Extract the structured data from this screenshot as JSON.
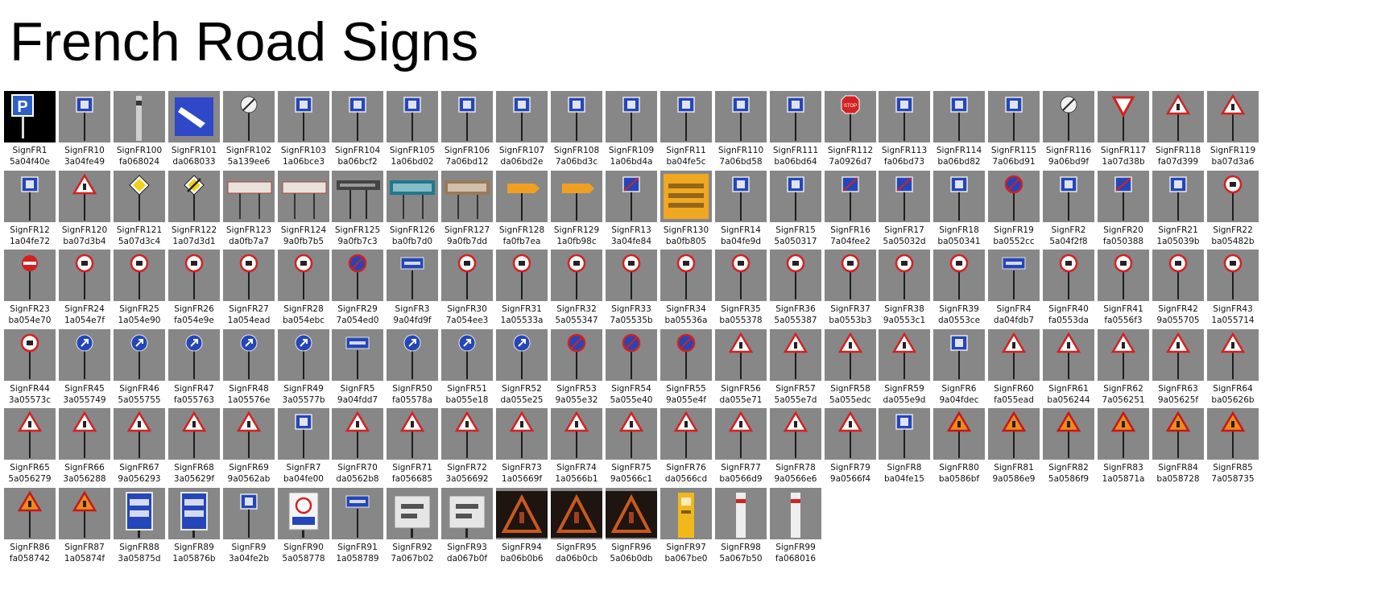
{
  "page": {
    "title": "French Road Signs"
  },
  "signs": [
    {
      "name": "SignFR1",
      "hash": "5a04f40e",
      "icon": "parking-sign-icon"
    },
    {
      "name": "SignFR10",
      "hash": "3a04fe49",
      "icon": "blue-square-sign-icon"
    },
    {
      "name": "SignFR100",
      "hash": "fa068024",
      "icon": "bollard-post-icon"
    },
    {
      "name": "SignFR101",
      "hash": "da068033",
      "icon": "blue-arrow-panel-icon"
    },
    {
      "name": "SignFR102",
      "hash": "5a139ee6",
      "icon": "end-restriction-sign-icon"
    },
    {
      "name": "SignFR103",
      "hash": "1a06bce3",
      "icon": "blue-square-sign-icon"
    },
    {
      "name": "SignFR104",
      "hash": "ba06bcf2",
      "icon": "blue-square-sign-icon"
    },
    {
      "name": "SignFR105",
      "hash": "1a06bd02",
      "icon": "blue-square-sign-icon"
    },
    {
      "name": "SignFR106",
      "hash": "7a06bd12",
      "icon": "blue-square-sign-icon"
    },
    {
      "name": "SignFR107",
      "hash": "da06bd2e",
      "icon": "blue-square-sign-icon"
    },
    {
      "name": "SignFR108",
      "hash": "7a06bd3c",
      "icon": "blue-square-sign-icon"
    },
    {
      "name": "SignFR109",
      "hash": "1a06bd4a",
      "icon": "blue-square-sign-icon"
    },
    {
      "name": "SignFR11",
      "hash": "ba04fe5c",
      "icon": "blue-square-sign-icon"
    },
    {
      "name": "SignFR110",
      "hash": "7a06bd58",
      "icon": "blue-square-sign-icon"
    },
    {
      "name": "SignFR111",
      "hash": "ba06bd64",
      "icon": "blue-square-sign-icon"
    },
    {
      "name": "SignFR112",
      "hash": "7a0926d7",
      "icon": "stop-sign-icon"
    },
    {
      "name": "SignFR113",
      "hash": "fa06bd73",
      "icon": "blue-square-sign-icon"
    },
    {
      "name": "SignFR114",
      "hash": "ba06bd82",
      "icon": "blue-square-sign-icon"
    },
    {
      "name": "SignFR115",
      "hash": "7a06bd91",
      "icon": "blue-square-sign-icon"
    },
    {
      "name": "SignFR116",
      "hash": "9a06bd9f",
      "icon": "end-restriction-sign-icon"
    },
    {
      "name": "SignFR117",
      "hash": "1a07d38b",
      "icon": "yield-sign-icon"
    },
    {
      "name": "SignFR118",
      "hash": "fa07d399",
      "icon": "warning-triangle-icon"
    },
    {
      "name": "SignFR119",
      "hash": "ba07d3a6",
      "icon": "warning-triangle-icon"
    },
    {
      "name": "SignFR12",
      "hash": "1a04fe72",
      "icon": "blue-square-sign-icon"
    },
    {
      "name": "SignFR120",
      "hash": "ba07d3b4",
      "icon": "warning-triangle-icon"
    },
    {
      "name": "SignFR121",
      "hash": "5a07d3c4",
      "icon": "priority-road-sign-icon"
    },
    {
      "name": "SignFR122",
      "hash": "1a07d3d1",
      "icon": "end-priority-road-sign-icon"
    },
    {
      "name": "SignFR123",
      "hash": "da0fb7a7",
      "icon": "white-direction-panel-icon"
    },
    {
      "name": "SignFR124",
      "hash": "9a0fb7b5",
      "icon": "white-direction-panel-icon"
    },
    {
      "name": "SignFR125",
      "hash": "9a0fb7c3",
      "icon": "dark-direction-panel-icon"
    },
    {
      "name": "SignFR126",
      "hash": "ba0fb7d0",
      "icon": "green-direction-panel-icon"
    },
    {
      "name": "SignFR127",
      "hash": "9a0fb7dd",
      "icon": "brown-direction-panel-icon"
    },
    {
      "name": "SignFR128",
      "hash": "fa0fb7ea",
      "icon": "orange-detour-panel-icon"
    },
    {
      "name": "SignFR129",
      "hash": "1a0fb98c",
      "icon": "orange-detour-panel-icon"
    },
    {
      "name": "SignFR13",
      "hash": "3a04fe84",
      "icon": "no-parking-square-sign-icon"
    },
    {
      "name": "SignFR130",
      "hash": "ba0fb805",
      "icon": "orange-roadworks-board-icon"
    },
    {
      "name": "SignFR14",
      "hash": "ba04fe9d",
      "icon": "blue-square-sign-icon"
    },
    {
      "name": "SignFR15",
      "hash": "5a050317",
      "icon": "blue-square-sign-icon"
    },
    {
      "name": "SignFR16",
      "hash": "7a04fee2",
      "icon": "no-parking-square-sign-icon"
    },
    {
      "name": "SignFR17",
      "hash": "5a05032d",
      "icon": "no-parking-square-sign-icon"
    },
    {
      "name": "SignFR18",
      "hash": "ba050341",
      "icon": "blue-square-sign-icon"
    },
    {
      "name": "SignFR19",
      "hash": "ba0552cc",
      "icon": "no-parking-round-sign-icon"
    },
    {
      "name": "SignFR2",
      "hash": "5a04f2f8",
      "icon": "blue-square-sign-icon"
    },
    {
      "name": "SignFR20",
      "hash": "fa050388",
      "icon": "no-parking-square-sign-icon"
    },
    {
      "name": "SignFR21",
      "hash": "1a05039b",
      "icon": "blue-square-sign-icon"
    },
    {
      "name": "SignFR22",
      "hash": "ba05482b",
      "icon": "prohibition-round-sign-icon"
    },
    {
      "name": "SignFR23",
      "hash": "ba054e70",
      "icon": "no-entry-sign-icon"
    },
    {
      "name": "SignFR24",
      "hash": "1a054e7f",
      "icon": "prohibition-round-sign-icon"
    },
    {
      "name": "SignFR25",
      "hash": "1a054e90",
      "icon": "prohibition-round-sign-icon"
    },
    {
      "name": "SignFR26",
      "hash": "fa054e9e",
      "icon": "prohibition-round-sign-icon"
    },
    {
      "name": "SignFR27",
      "hash": "1a054ead",
      "icon": "prohibition-round-sign-icon"
    },
    {
      "name": "SignFR28",
      "hash": "ba054ebc",
      "icon": "prohibition-round-sign-icon"
    },
    {
      "name": "SignFR29",
      "hash": "7a054ed0",
      "icon": "no-parking-round-sign-icon"
    },
    {
      "name": "SignFR3",
      "hash": "9a04fd9f",
      "icon": "blue-rect-panel-icon"
    },
    {
      "name": "SignFR30",
      "hash": "7a054ee3",
      "icon": "prohibition-round-sign-icon"
    },
    {
      "name": "SignFR31",
      "hash": "1a05533a",
      "icon": "prohibition-round-sign-icon"
    },
    {
      "name": "SignFR32",
      "hash": "5a055347",
      "icon": "prohibition-round-sign-icon"
    },
    {
      "name": "SignFR33",
      "hash": "7a05535b",
      "icon": "prohibition-round-sign-icon"
    },
    {
      "name": "SignFR34",
      "hash": "ba05536a",
      "icon": "prohibition-round-sign-icon"
    },
    {
      "name": "SignFR35",
      "hash": "ba055378",
      "icon": "prohibition-round-sign-icon"
    },
    {
      "name": "SignFR36",
      "hash": "5a055387",
      "icon": "prohibition-round-sign-icon"
    },
    {
      "name": "SignFR37",
      "hash": "ba0553b3",
      "icon": "prohibition-round-sign-icon"
    },
    {
      "name": "SignFR38",
      "hash": "9a0553c1",
      "icon": "prohibition-round-sign-icon"
    },
    {
      "name": "SignFR39",
      "hash": "da0553ce",
      "icon": "prohibition-round-sign-icon"
    },
    {
      "name": "SignFR4",
      "hash": "da04fdb7",
      "icon": "blue-rect-panel-icon"
    },
    {
      "name": "SignFR40",
      "hash": "fa0553da",
      "icon": "prohibition-round-sign-icon"
    },
    {
      "name": "SignFR41",
      "hash": "fa0556f3",
      "icon": "prohibition-round-sign-icon"
    },
    {
      "name": "SignFR42",
      "hash": "9a055705",
      "icon": "prohibition-round-sign-icon"
    },
    {
      "name": "SignFR43",
      "hash": "1a055714",
      "icon": "prohibition-round-sign-icon"
    },
    {
      "name": "SignFR44",
      "hash": "3a05573c",
      "icon": "prohibition-round-sign-icon"
    },
    {
      "name": "SignFR45",
      "hash": "3a055749",
      "icon": "mandatory-round-sign-icon"
    },
    {
      "name": "SignFR46",
      "hash": "5a055755",
      "icon": "mandatory-round-sign-icon"
    },
    {
      "name": "SignFR47",
      "hash": "fa055763",
      "icon": "mandatory-round-sign-icon"
    },
    {
      "name": "SignFR48",
      "hash": "1a05576e",
      "icon": "mandatory-round-sign-icon"
    },
    {
      "name": "SignFR49",
      "hash": "3a05577b",
      "icon": "mandatory-round-sign-icon"
    },
    {
      "name": "SignFR5",
      "hash": "9a04fdd7",
      "icon": "blue-rect-panel-icon"
    },
    {
      "name": "SignFR50",
      "hash": "fa05578a",
      "icon": "mandatory-round-sign-icon"
    },
    {
      "name": "SignFR51",
      "hash": "ba055e18",
      "icon": "mandatory-round-sign-icon"
    },
    {
      "name": "SignFR52",
      "hash": "da055e25",
      "icon": "mandatory-round-sign-icon"
    },
    {
      "name": "SignFR53",
      "hash": "9a055e32",
      "icon": "no-parking-round-sign-icon"
    },
    {
      "name": "SignFR54",
      "hash": "5a055e40",
      "icon": "no-parking-round-sign-icon"
    },
    {
      "name": "SignFR55",
      "hash": "9a055e4f",
      "icon": "no-parking-round-sign-icon"
    },
    {
      "name": "SignFR56",
      "hash": "da055e71",
      "icon": "warning-triangle-icon"
    },
    {
      "name": "SignFR57",
      "hash": "5a055e7d",
      "icon": "warning-triangle-icon"
    },
    {
      "name": "SignFR58",
      "hash": "5a055edc",
      "icon": "warning-triangle-icon"
    },
    {
      "name": "SignFR59",
      "hash": "da055e9d",
      "icon": "warning-triangle-icon"
    },
    {
      "name": "SignFR6",
      "hash": "9a04fdec",
      "icon": "blue-square-sign-icon"
    },
    {
      "name": "SignFR60",
      "hash": "fa055ead",
      "icon": "warning-triangle-icon"
    },
    {
      "name": "SignFR61",
      "hash": "ba056244",
      "icon": "warning-triangle-icon"
    },
    {
      "name": "SignFR62",
      "hash": "7a056251",
      "icon": "warning-triangle-icon"
    },
    {
      "name": "SignFR63",
      "hash": "9a05625f",
      "icon": "warning-triangle-icon"
    },
    {
      "name": "SignFR64",
      "hash": "ba05626b",
      "icon": "warning-triangle-icon"
    },
    {
      "name": "SignFR65",
      "hash": "5a056279",
      "icon": "warning-triangle-icon"
    },
    {
      "name": "SignFR66",
      "hash": "3a056288",
      "icon": "warning-triangle-icon"
    },
    {
      "name": "SignFR67",
      "hash": "9a056293",
      "icon": "warning-triangle-icon"
    },
    {
      "name": "SignFR68",
      "hash": "3a05629f",
      "icon": "warning-triangle-icon"
    },
    {
      "name": "SignFR69",
      "hash": "9a0562ab",
      "icon": "warning-triangle-icon"
    },
    {
      "name": "SignFR7",
      "hash": "ba04fe00",
      "icon": "blue-square-sign-icon"
    },
    {
      "name": "SignFR70",
      "hash": "da0562b8",
      "icon": "warning-triangle-icon"
    },
    {
      "name": "SignFR71",
      "hash": "fa056685",
      "icon": "warning-triangle-icon"
    },
    {
      "name": "SignFR72",
      "hash": "3a056692",
      "icon": "warning-triangle-icon"
    },
    {
      "name": "SignFR73",
      "hash": "1a05669f",
      "icon": "warning-triangle-icon"
    },
    {
      "name": "SignFR74",
      "hash": "1a0566b1",
      "icon": "warning-triangle-icon"
    },
    {
      "name": "SignFR75",
      "hash": "9a0566c1",
      "icon": "warning-triangle-icon"
    },
    {
      "name": "SignFR76",
      "hash": "da0566cd",
      "icon": "warning-triangle-icon"
    },
    {
      "name": "SignFR77",
      "hash": "ba0566d9",
      "icon": "warning-triangle-icon"
    },
    {
      "name": "SignFR78",
      "hash": "9a0566e6",
      "icon": "warning-triangle-icon"
    },
    {
      "name": "SignFR79",
      "hash": "9a0566f4",
      "icon": "warning-triangle-icon"
    },
    {
      "name": "SignFR8",
      "hash": "ba04fe15",
      "icon": "blue-square-sign-icon"
    },
    {
      "name": "SignFR80",
      "hash": "ba0586bf",
      "icon": "roadworks-triangle-icon"
    },
    {
      "name": "SignFR81",
      "hash": "9a0586e9",
      "icon": "roadworks-triangle-icon"
    },
    {
      "name": "SignFR82",
      "hash": "5a0586f9",
      "icon": "roadworks-triangle-icon"
    },
    {
      "name": "SignFR83",
      "hash": "1a05871a",
      "icon": "roadworks-triangle-icon"
    },
    {
      "name": "SignFR84",
      "hash": "ba058728",
      "icon": "roadworks-triangle-icon"
    },
    {
      "name": "SignFR85",
      "hash": "7a058735",
      "icon": "roadworks-triangle-icon"
    },
    {
      "name": "SignFR86",
      "hash": "fa058742",
      "icon": "roadworks-triangle-icon"
    },
    {
      "name": "SignFR87",
      "hash": "1a05874f",
      "icon": "roadworks-triangle-icon"
    },
    {
      "name": "SignFR88",
      "hash": "3a05875d",
      "icon": "blue-tall-panel-icon"
    },
    {
      "name": "SignFR89",
      "hash": "1a05876b",
      "icon": "blue-tall-panel-icon"
    },
    {
      "name": "SignFR9",
      "hash": "3a04fe2b",
      "icon": "blue-square-sign-icon"
    },
    {
      "name": "SignFR90",
      "hash": "5a058778",
      "icon": "white-speed-panel-icon"
    },
    {
      "name": "SignFR91",
      "hash": "1a058789",
      "icon": "blue-rect-panel-icon"
    },
    {
      "name": "SignFR92",
      "hash": "7a067b02",
      "icon": "white-info-panel-icon"
    },
    {
      "name": "SignFR93",
      "hash": "da067b0f",
      "icon": "white-info-panel-icon"
    },
    {
      "name": "SignFR94",
      "hash": "ba06b0b6",
      "icon": "dark-warning-board-icon"
    },
    {
      "name": "SignFR95",
      "hash": "da06b0cb",
      "icon": "dark-warning-board-icon"
    },
    {
      "name": "SignFR96",
      "hash": "5a06b0db",
      "icon": "dark-warning-board-icon"
    },
    {
      "name": "SignFR97",
      "hash": "ba067be0",
      "icon": "yellow-phone-post-icon"
    },
    {
      "name": "SignFR98",
      "hash": "5a067b50",
      "icon": "white-reflector-post-icon"
    },
    {
      "name": "SignFR99",
      "hash": "fa068016",
      "icon": "white-reflector-post-icon"
    }
  ]
}
